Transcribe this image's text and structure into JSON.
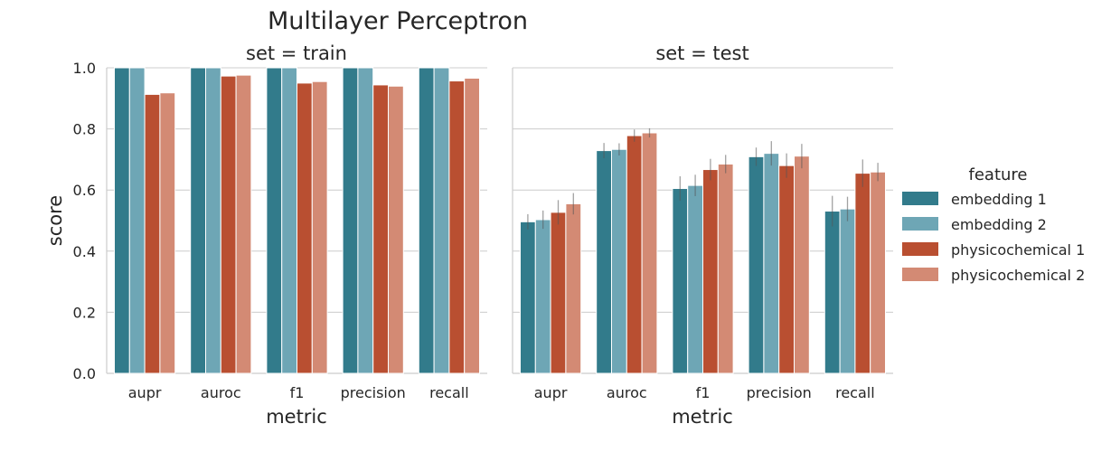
{
  "title": "Multilayer Perceptron",
  "colors": {
    "embedding 1": "#327b8b",
    "embedding 2": "#6ea6b5",
    "physicochemical 1": "#b94f31",
    "physicochemical 2": "#d38a74"
  },
  "legend": {
    "title": "feature",
    "placement": "right",
    "entries": [
      "embedding 1",
      "embedding 2",
      "physicochemical 1",
      "physicochemical 2"
    ]
  },
  "chart_data": [
    {
      "type": "bar",
      "title": "set = train",
      "xlabel": "metric",
      "ylabel": "score",
      "ylim": [
        0,
        1
      ],
      "yticks": [
        "0.0",
        "0.2",
        "0.4",
        "0.6",
        "0.8",
        "1.0"
      ],
      "grid": "y",
      "categories": [
        "aupr",
        "auroc",
        "f1",
        "precision",
        "recall"
      ],
      "series": [
        {
          "name": "embedding 1",
          "values": [
            1.0,
            1.0,
            1.0,
            1.0,
            1.0
          ],
          "err": [
            0,
            0,
            0,
            0,
            0
          ]
        },
        {
          "name": "embedding 2",
          "values": [
            1.0,
            1.0,
            1.0,
            1.0,
            1.0
          ],
          "err": [
            0,
            0,
            0,
            0,
            0
          ]
        },
        {
          "name": "physicochemical 1",
          "values": [
            0.913,
            0.973,
            0.95,
            0.944,
            0.957
          ],
          "err": [
            0,
            0,
            0,
            0,
            0
          ]
        },
        {
          "name": "physicochemical 2",
          "values": [
            0.918,
            0.976,
            0.955,
            0.94,
            0.966
          ],
          "err": [
            0,
            0,
            0,
            0,
            0
          ]
        }
      ]
    },
    {
      "type": "bar",
      "title": "set = test",
      "xlabel": "metric",
      "ylabel": "",
      "ylim": [
        0,
        1
      ],
      "grid": "y",
      "categories": [
        "aupr",
        "auroc",
        "f1",
        "precision",
        "recall"
      ],
      "series": [
        {
          "name": "embedding 1",
          "values": [
            0.496,
            0.729,
            0.605,
            0.709,
            0.531
          ],
          "err": [
            0.025,
            0.025,
            0.04,
            0.03,
            0.05
          ]
        },
        {
          "name": "embedding 2",
          "values": [
            0.503,
            0.733,
            0.615,
            0.72,
            0.538
          ],
          "err": [
            0.03,
            0.02,
            0.035,
            0.04,
            0.04
          ]
        },
        {
          "name": "physicochemical 1",
          "values": [
            0.527,
            0.778,
            0.667,
            0.68,
            0.655
          ],
          "err": [
            0.04,
            0.02,
            0.035,
            0.04,
            0.045
          ]
        },
        {
          "name": "physicochemical 2",
          "values": [
            0.555,
            0.787,
            0.685,
            0.711,
            0.659
          ],
          "err": [
            0.035,
            0.015,
            0.03,
            0.04,
            0.03
          ]
        }
      ]
    }
  ]
}
